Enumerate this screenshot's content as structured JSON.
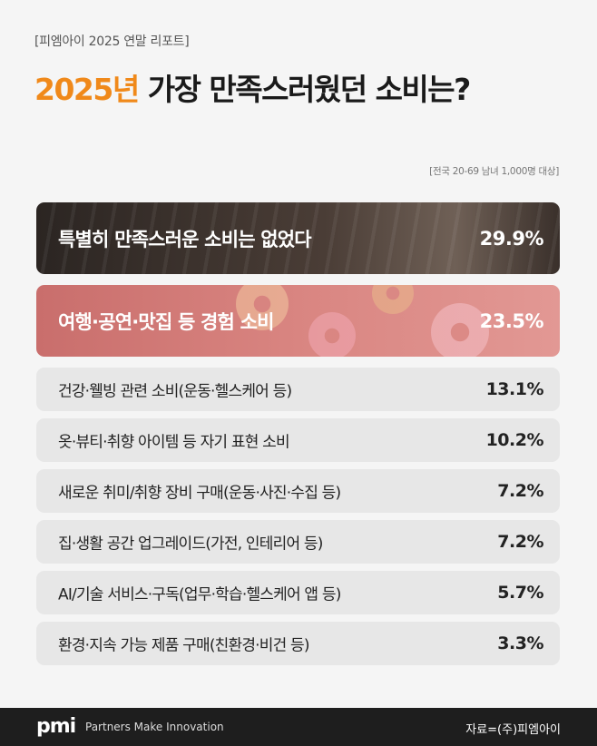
{
  "header": {
    "subtitle": "[피엠아이 2025 연말 리포트]",
    "title_accent": "2025년",
    "title_rest": " 가장 만족스러웠던 소비는?",
    "note": "[전국 20-69 남녀 1,000명 대상]"
  },
  "chart_data": {
    "type": "bar",
    "orientation": "horizontal",
    "categories": [
      "특별히 만족스러운 소비는 없었다",
      "여행·공연·맛집 등 경험 소비",
      "건강·웰빙 관련 소비(운동·헬스케어 등)",
      "옷·뷰티·취향 아이템 등 자기 표현 소비",
      "새로운 취미/취향 장비 구매(운동·사진·수집 등)",
      "집·생활 공간 업그레이드(가전, 인테리어 등)",
      "AI/기술 서비스·구독(업무·학습·헬스케어 앱 등)",
      "환경·지속 가능 제품 구매(친환경·비건 등)"
    ],
    "values": [
      29.9,
      23.5,
      13.1,
      10.2,
      7.2,
      7.2,
      5.7,
      3.3
    ],
    "value_labels": [
      "29.9%",
      "23.5%",
      "13.1%",
      "10.2%",
      "7.2%",
      "7.2%",
      "5.7%",
      "3.3%"
    ],
    "unit": "%"
  },
  "footer": {
    "logo": "pmi",
    "tagline": "Partners Make Innovation",
    "source": "자료=(주)피엠아이"
  },
  "colors": {
    "accent": "#f0891a",
    "footer_bg": "#1e1e1e",
    "row_bg": "#e7e7e7",
    "hero_dark": "#3a302b",
    "hero_pink": "#d98581"
  }
}
